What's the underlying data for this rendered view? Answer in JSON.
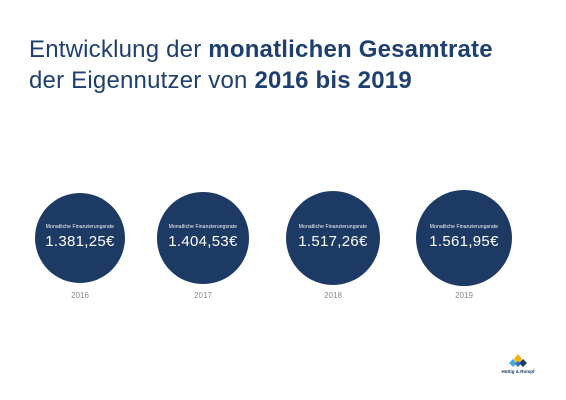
{
  "title": {
    "line1_normal": "Entwicklung der ",
    "line1_bold": "monatlichen Gesamtrate",
    "line2_normal": "der Eigennutzer von ",
    "line2_bold": "2016 bis 2019"
  },
  "chart_data": {
    "type": "bubble",
    "title": "Entwicklung der monatlichen Gesamtrate der Eigennutzer von 2016 bis 2019",
    "caption": "Monatliche Finanzierungsrate",
    "categories": [
      "2016",
      "2017",
      "2018",
      "2019"
    ],
    "values": [
      1381.25,
      1404.53,
      1517.26,
      1561.95
    ],
    "value_labels": [
      "1.381,25€",
      "1.404,53€",
      "1.517,26€",
      "1.561,95€"
    ],
    "unit": "€",
    "colors": {
      "bubble": "#1c3a63",
      "title": "#1f3f6e",
      "year": "#8a8a8a"
    }
  },
  "logo": {
    "text": "Hüttig & Rompf"
  }
}
